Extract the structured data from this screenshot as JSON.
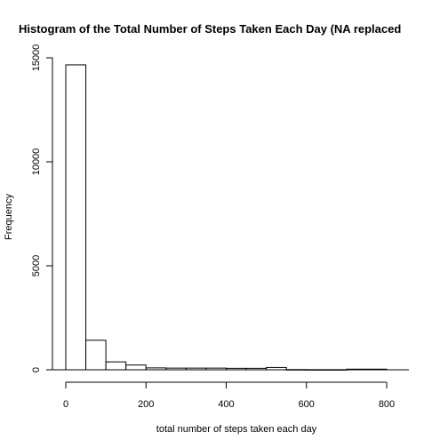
{
  "chart_data": {
    "type": "bar",
    "title": "Histogram of the Total Number of Steps Taken Each Day (NA replaced",
    "xlabel": "total number of steps taken each day",
    "ylabel": "Frequency",
    "x_ticks": [
      "0",
      "200",
      "400",
      "600",
      "800"
    ],
    "y_ticks": [
      "0",
      "5000",
      "10000",
      "15000"
    ],
    "xlim": [
      0,
      850
    ],
    "ylim": [
      0,
      15500
    ],
    "bin_width": 50,
    "bin_starts": [
      0,
      50,
      100,
      150,
      200,
      250,
      300,
      350,
      400,
      450,
      500,
      550,
      600,
      650,
      700,
      750
    ],
    "values": [
      14660,
      1420,
      380,
      230,
      90,
      80,
      80,
      80,
      70,
      70,
      110,
      10,
      5,
      5,
      30,
      30
    ]
  }
}
